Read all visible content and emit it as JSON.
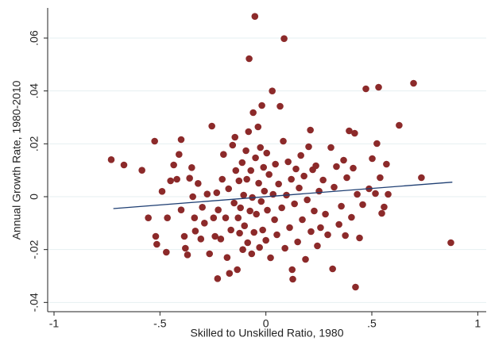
{
  "chart_data": {
    "type": "scatter",
    "x_label": "Skilled to Unskilled Ratio, 1980",
    "y_label": "Annual Growth Rate, 1980-2010",
    "xlim": [
      -1.03,
      1.04
    ],
    "ylim": [
      -0.0435,
      0.0714
    ],
    "xticks": [
      -1,
      {
        "value": -0.5,
        "label": "-.5"
      },
      0,
      {
        "value": 0.5,
        "label": ".5"
      },
      1
    ],
    "yticks": [
      {
        "value": -0.04,
        "label": "-.04"
      },
      {
        "value": -0.02,
        "label": "-.02"
      },
      0,
      {
        "value": 0.02,
        "label": ".02"
      },
      {
        "value": 0.04,
        "label": ".04"
      },
      {
        "value": 0.06,
        "label": ".06"
      }
    ],
    "grid": true,
    "color": "#8c2a2a",
    "x": [
      -0.73,
      -0.67,
      -0.585,
      -0.555,
      -0.525,
      -0.52,
      -0.515,
      -0.49,
      -0.47,
      -0.465,
      -0.45,
      -0.435,
      -0.42,
      -0.41,
      -0.4,
      -0.4,
      -0.385,
      -0.38,
      -0.37,
      -0.36,
      -0.35,
      -0.345,
      -0.337,
      -0.333,
      -0.32,
      -0.307,
      -0.3,
      -0.29,
      -0.277,
      -0.266,
      -0.255,
      -0.247,
      -0.24,
      -0.232,
      -0.228,
      -0.225,
      -0.213,
      -0.206,
      -0.2,
      -0.19,
      -0.183,
      -0.176,
      -0.172,
      -0.165,
      -0.157,
      -0.15,
      -0.146,
      -0.142,
      -0.135,
      -0.131,
      -0.127,
      -0.124,
      -0.12,
      -0.112,
      -0.109,
      -0.105,
      -0.101,
      -0.094,
      -0.09,
      -0.086,
      -0.082,
      -0.079,
      -0.075,
      -0.071,
      -0.067,
      -0.064,
      -0.06,
      -0.056,
      -0.052,
      -0.049,
      -0.045,
      -0.037,
      -0.034,
      -0.03,
      -0.026,
      -0.022,
      -0.019,
      -0.015,
      -0.011,
      -0.007,
      0.0,
      0.004,
      0.007,
      0.015,
      0.022,
      0.03,
      0.034,
      0.041,
      0.045,
      0.052,
      0.06,
      0.067,
      0.075,
      0.082,
      0.086,
      0.09,
      0.097,
      0.105,
      0.112,
      0.12,
      0.124,
      0.127,
      0.135,
      0.142,
      0.15,
      0.157,
      0.165,
      0.172,
      0.18,
      0.187,
      0.195,
      0.202,
      0.21,
      0.213,
      0.221,
      0.228,
      0.236,
      0.243,
      0.251,
      0.258,
      0.27,
      0.281,
      0.292,
      0.307,
      0.315,
      0.322,
      0.333,
      0.345,
      0.356,
      0.367,
      0.375,
      0.382,
      0.393,
      0.404,
      0.412,
      0.419,
      0.423,
      0.431,
      0.442,
      0.457,
      0.472,
      0.487,
      0.502,
      0.517,
      0.524,
      0.532,
      0.539,
      0.547,
      0.558,
      0.569,
      0.577,
      0.629,
      0.697,
      0.734,
      0.873
    ],
    "y": [
      0.014,
      0.012,
      0.01,
      -0.008,
      0.021,
      -0.015,
      -0.018,
      0.002,
      -0.021,
      -0.008,
      0.006,
      0.012,
      0.0066,
      0.016,
      -0.005,
      0.0216,
      -0.015,
      -0.0195,
      -0.022,
      0.007,
      0.011,
      0,
      -0.008,
      -0.013,
      0.005,
      -0.016,
      -0.004,
      -0.01,
      0.001,
      -0.0216,
      0.0267,
      -0.008,
      -0.015,
      0.0015,
      -0.031,
      -0.005,
      -0.016,
      0.0066,
      0.016,
      -0.008,
      -0.023,
      0.003,
      -0.029,
      -0.0126,
      0.0195,
      -0.0024,
      0.0225,
      0.0099,
      -0.0276,
      -0.008,
      0.006,
      -0.0138,
      -0.0042,
      0.0129,
      -0.02,
      0.0006,
      -0.011,
      0.0174,
      0.0066,
      -0.0174,
      0.0246,
      0.0522,
      -0.0054,
      0.0099,
      -0.0216,
      -0.0003,
      0.0318,
      -0.0135,
      0.0682,
      0.0147,
      -0.0066,
      0.0264,
      0.0051,
      -0.0192,
      0.0186,
      -0.0018,
      0.0345,
      -0.0126,
      0.0111,
      0.0021,
      -0.0165,
      0.0165,
      -0.0051,
      0.0084,
      -0.0231,
      0.04,
      0.0009,
      -0.0087,
      0.0123,
      -0.0144,
      0.0048,
      0.0342,
      -0.0042,
      0.021,
      0.0598,
      -0.0195,
      0.0006,
      0.0132,
      -0.0117,
      0.0066,
      -0.0276,
      -0.0312,
      -0.0027,
      0.0105,
      -0.0171,
      0.0033,
      0.0156,
      -0.0087,
      0.0078,
      -0.0237,
      -0.0012,
      0.0189,
      0.0252,
      -0.0132,
      0.0102,
      -0.0054,
      0.0117,
      -0.0186,
      0.0021,
      -0.0117,
      0.0063,
      -0.0066,
      -0.0144,
      0.0186,
      -0.0273,
      0.0036,
      0.0114,
      -0.0105,
      -0.0036,
      0.0138,
      -0.0147,
      0.0072,
      0.0249,
      -0.0078,
      0.0108,
      0.024,
      -0.0342,
      0.0009,
      -0.0156,
      -0.003,
      0.0408,
      0.003,
      0.0144,
      0.0012,
      0.0201,
      0.0414,
      0.0072,
      -0.0063,
      -0.0039,
      0.0123,
      0.0009,
      0.027,
      0.0429,
      0.0072,
      -0.0174
    ],
    "fit_line": {
      "color": "#1f3f73",
      "x": [
        -0.72,
        0.88
      ],
      "y": [
        -0.0045,
        0.0055
      ]
    }
  }
}
